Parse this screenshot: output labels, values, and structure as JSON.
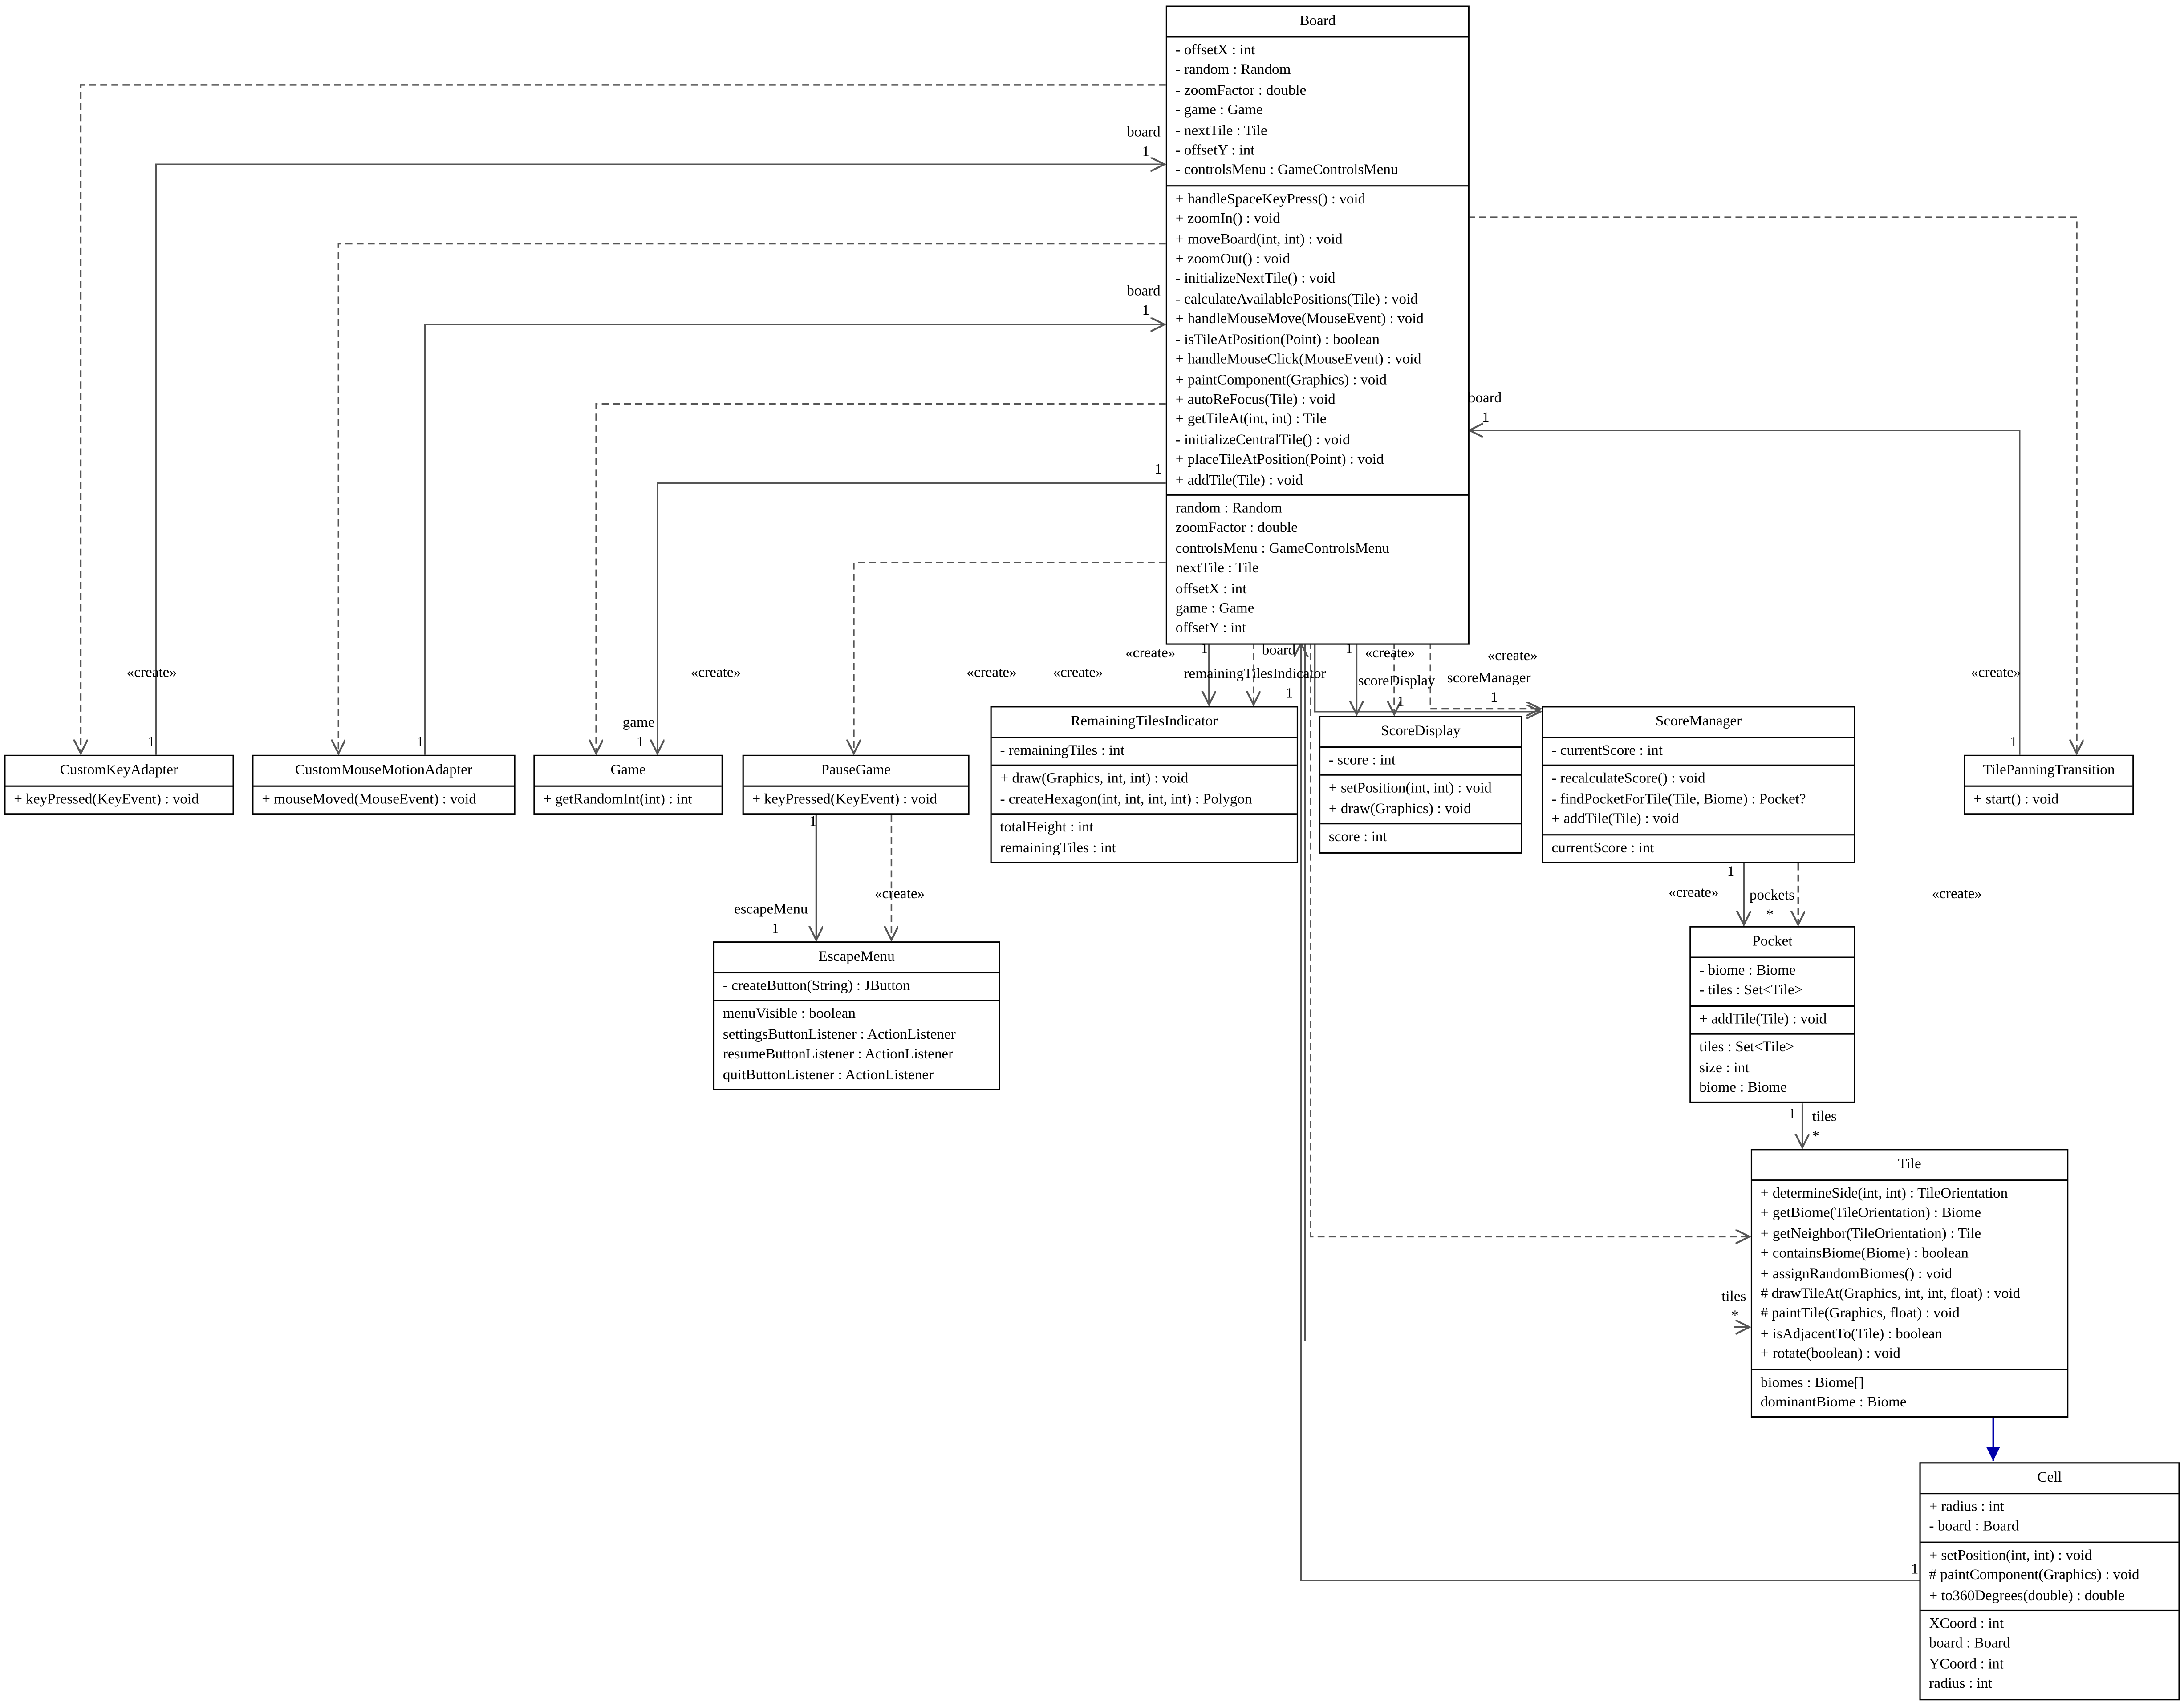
{
  "classes": {
    "board": {
      "name": "Board",
      "attributes": [
        "- offsetX : int",
        "- random : Random",
        "- zoomFactor : double",
        "- game : Game",
        "- nextTile : Tile",
        "- offsetY : int",
        "- controlsMenu : GameControlsMenu"
      ],
      "methods": [
        "+ handleSpaceKeyPress() : void",
        "+ zoomIn() : void",
        "+ moveBoard(int, int) : void",
        "+ zoomOut() : void",
        "- initializeNextTile() : void",
        "- calculateAvailablePositions(Tile) : void",
        "+ handleMouseMove(MouseEvent) : void",
        "- isTileAtPosition(Point) : boolean",
        "+ handleMouseClick(MouseEvent) : void",
        "+ paintComponent(Graphics) : void",
        "+ autoReFocus(Tile) : void",
        "+ getTileAt(int, int) : Tile",
        "- initializeCentralTile() : void",
        "+ placeTileAtPosition(Point) : void",
        "+ addTile(Tile) : void"
      ],
      "properties": [
        "random : Random",
        "zoomFactor : double",
        "controlsMenu : GameControlsMenu",
        "nextTile : Tile",
        "offsetX : int",
        "game : Game",
        "offsetY : int"
      ]
    },
    "customKeyAdapter": {
      "name": "CustomKeyAdapter",
      "attributes": [],
      "methods": [
        "+ keyPressed(KeyEvent) : void"
      ],
      "properties": []
    },
    "customMouseMotionAdapter": {
      "name": "CustomMouseMotionAdapter",
      "attributes": [],
      "methods": [
        "+ mouseMoved(MouseEvent) : void"
      ],
      "properties": []
    },
    "game": {
      "name": "Game",
      "attributes": [],
      "methods": [
        "+ getRandomInt(int) : int"
      ],
      "properties": []
    },
    "pauseGame": {
      "name": "PauseGame",
      "attributes": [],
      "methods": [
        "+ keyPressed(KeyEvent) : void"
      ],
      "properties": []
    },
    "remainingTilesIndicator": {
      "name": "RemainingTilesIndicator",
      "attributes": [
        "- remainingTiles : int"
      ],
      "methods": [
        "+ draw(Graphics, int, int) : void",
        "- createHexagon(int, int, int, int) : Polygon"
      ],
      "properties": [
        "totalHeight : int",
        "remainingTiles : int"
      ]
    },
    "scoreDisplay": {
      "name": "ScoreDisplay",
      "attributes": [
        "- score : int"
      ],
      "methods": [
        "+ setPosition(int, int) : void",
        "+ draw(Graphics) : void"
      ],
      "properties": [
        "score : int"
      ]
    },
    "scoreManager": {
      "name": "ScoreManager",
      "attributes": [
        "- currentScore : int"
      ],
      "methods": [
        "- recalculateScore() : void",
        "- findPocketForTile(Tile, Biome) : Pocket?",
        "+ addTile(Tile) : void"
      ],
      "properties": [
        "currentScore : int"
      ]
    },
    "tilePanningTransition": {
      "name": "TilePanningTransition",
      "attributes": [],
      "methods": [
        "+ start() : void"
      ],
      "properties": []
    },
    "escapeMenu": {
      "name": "EscapeMenu",
      "attributes": [],
      "methods": [
        "- createButton(String) : JButton"
      ],
      "properties": [
        "menuVisible : boolean",
        "settingsButtonListener : ActionListener",
        "resumeButtonListener : ActionListener",
        "quitButtonListener : ActionListener"
      ]
    },
    "pocket": {
      "name": "Pocket",
      "attributes": [
        "- biome : Biome",
        "- tiles : Set<Tile>"
      ],
      "methods": [
        "+ addTile(Tile) : void"
      ],
      "properties": [
        "tiles : Set<Tile>",
        "size : int",
        "biome : Biome"
      ]
    },
    "tile": {
      "name": "Tile",
      "attributes": [],
      "methods": [
        "+ determineSide(int, int) : TileOrientation",
        "+ getBiome(TileOrientation) : Biome",
        "+ getNeighbor(TileOrientation) : Tile",
        "+ containsBiome(Biome) : boolean",
        "+ assignRandomBiomes() : void",
        "# drawTileAt(Graphics, int, int, float) : void",
        "# paintTile(Graphics, float) : void",
        "+ isAdjacentTo(Tile) : boolean",
        "+ rotate(boolean) : void"
      ],
      "properties": [
        "biomes : Biome[]",
        "dominantBiome : Biome"
      ]
    },
    "cell": {
      "name": "Cell",
      "attributes": [
        "+ radius : int",
        "- board : Board"
      ],
      "methods": [
        "+ setPosition(int, int) : void",
        "# paintComponent(Graphics) : void",
        "+ to360Degrees(double) : double"
      ],
      "properties": [
        "XCoord : int",
        "board : Board",
        "YCoord : int",
        "radius : int"
      ]
    }
  },
  "labels": {
    "create": "«create»",
    "board": "board",
    "one": "1",
    "game": "game",
    "escapeMenu": "escapeMenu",
    "remainingTilesIndicator": "remainingTilesIndicator",
    "scoreDisplay": "scoreDisplay",
    "scoreManager": "scoreManager",
    "pockets": "pockets",
    "tiles": "tiles",
    "many": "*"
  },
  "colors": {
    "edge": "#555555",
    "inheritance": "#0000aa"
  }
}
